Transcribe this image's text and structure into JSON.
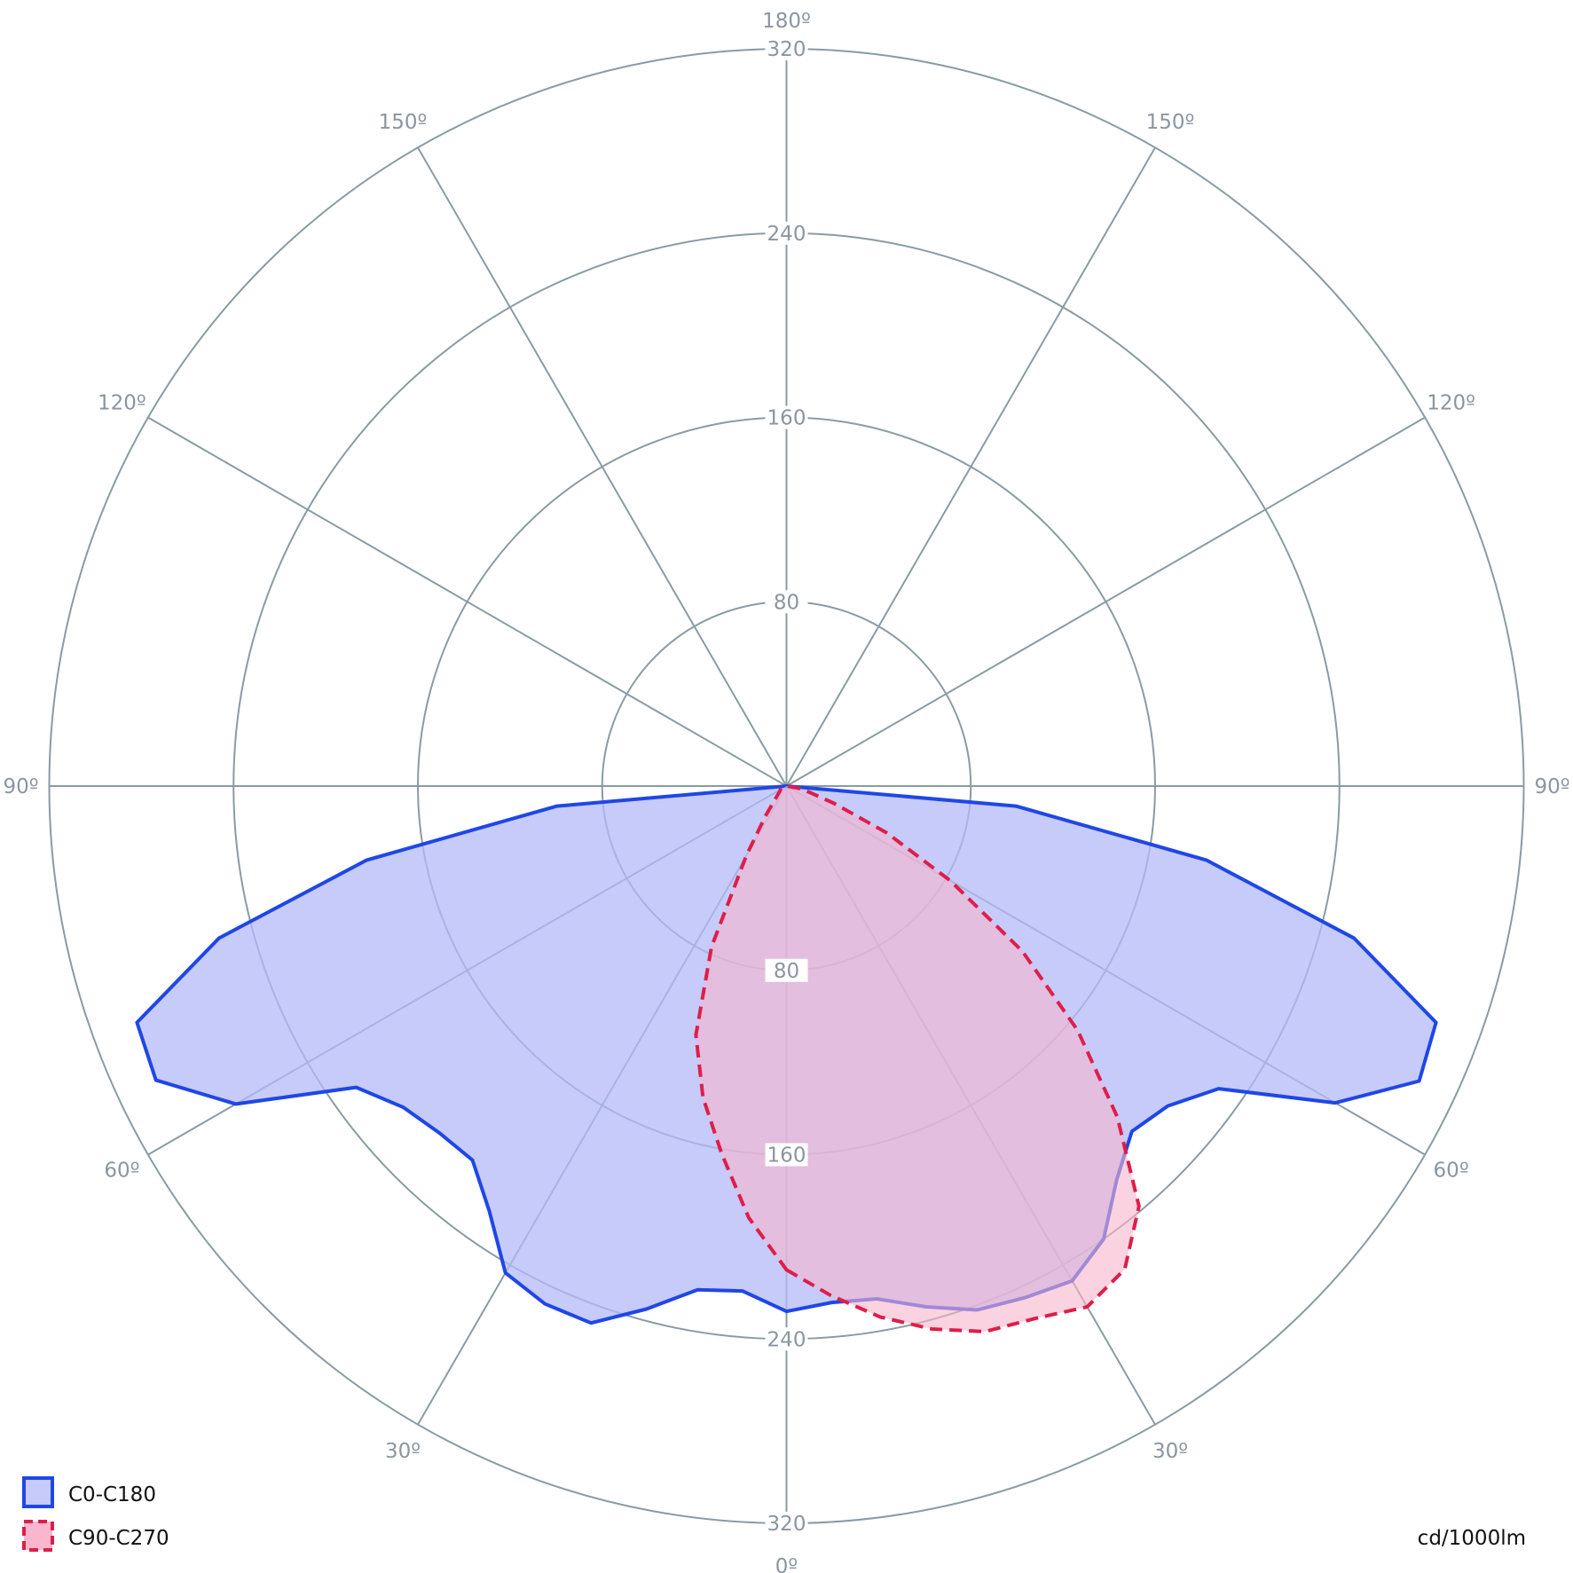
{
  "chart_data": {
    "type": "polar",
    "unit": "cd/1000lm",
    "radial_max": 320,
    "radial_ticks_top": [
      "80",
      "160",
      "240",
      "320"
    ],
    "radial_ticks_bottom": [
      "80",
      "160",
      "240",
      "320"
    ],
    "radial_tick_values": [
      80,
      160,
      240,
      320
    ],
    "angle_labels": [
      "0º",
      "30º",
      "60º",
      "90º",
      "120º",
      "150º",
      "180º"
    ],
    "legend": [
      {
        "name": "C0-C180",
        "stroke": "#1f47e6",
        "fill": "#c6cbfa",
        "dash": false
      },
      {
        "name": "C90-C270",
        "stroke": "#de1e4a",
        "fill": "#f9b6cc",
        "dash": true
      }
    ],
    "series": [
      {
        "name": "C0-C180",
        "color": "#1f47e6",
        "fill": "#b3b9f8",
        "points_right": [
          {
            "angle": 0,
            "value": 228
          },
          {
            "angle": 5,
            "value": 225
          },
          {
            "angle": 10,
            "value": 226
          },
          {
            "angle": 15,
            "value": 234
          },
          {
            "angle": 20,
            "value": 242
          },
          {
            "angle": 25,
            "value": 245
          },
          {
            "angle": 30,
            "value": 248
          },
          {
            "angle": 35,
            "value": 240
          },
          {
            "angle": 40,
            "value": 223
          },
          {
            "angle": 45,
            "value": 212
          },
          {
            "angle": 50,
            "value": 216
          },
          {
            "angle": 55,
            "value": 229
          },
          {
            "angle": 60,
            "value": 275
          },
          {
            "angle": 65,
            "value": 303
          },
          {
            "angle": 70,
            "value": 300
          },
          {
            "angle": 75,
            "value": 255
          },
          {
            "angle": 80,
            "value": 185
          },
          {
            "angle": 85,
            "value": 100
          },
          {
            "angle": 90,
            "value": 0
          }
        ],
        "points_left": [
          {
            "angle": 0,
            "value": 228
          },
          {
            "angle": 5,
            "value": 220
          },
          {
            "angle": 10,
            "value": 222
          },
          {
            "angle": 15,
            "value": 235
          },
          {
            "angle": 20,
            "value": 248
          },
          {
            "angle": 25,
            "value": 248
          },
          {
            "angle": 30,
            "value": 244
          },
          {
            "angle": 35,
            "value": 225
          },
          {
            "angle": 40,
            "value": 212
          },
          {
            "angle": 45,
            "value": 213
          },
          {
            "angle": 50,
            "value": 217
          },
          {
            "angle": 55,
            "value": 228
          },
          {
            "angle": 60,
            "value": 276
          },
          {
            "angle": 65,
            "value": 302
          },
          {
            "angle": 70,
            "value": 300
          },
          {
            "angle": 75,
            "value": 255
          },
          {
            "angle": 80,
            "value": 185
          },
          {
            "angle": 85,
            "value": 100
          },
          {
            "angle": 90,
            "value": 0
          }
        ]
      },
      {
        "name": "C90-C270",
        "color": "#de1e4a",
        "fill": "#f9b6cc",
        "points_right": [
          {
            "angle": 0,
            "value": 210
          },
          {
            "angle": 5,
            "value": 222
          },
          {
            "angle": 10,
            "value": 234
          },
          {
            "angle": 15,
            "value": 244
          },
          {
            "angle": 20,
            "value": 252
          },
          {
            "angle": 25,
            "value": 255
          },
          {
            "angle": 30,
            "value": 261
          },
          {
            "angle": 35,
            "value": 256
          },
          {
            "angle": 40,
            "value": 238
          },
          {
            "angle": 45,
            "value": 203
          },
          {
            "angle": 50,
            "value": 165
          },
          {
            "angle": 55,
            "value": 125
          },
          {
            "angle": 60,
            "value": 82
          },
          {
            "angle": 65,
            "value": 48
          },
          {
            "angle": 70,
            "value": 22
          },
          {
            "angle": 75,
            "value": 10
          },
          {
            "angle": 80,
            "value": 5
          },
          {
            "angle": 90,
            "value": 0
          }
        ],
        "points_left": [
          {
            "angle": 0,
            "value": 210
          },
          {
            "angle": 5,
            "value": 188
          },
          {
            "angle": 10,
            "value": 162
          },
          {
            "angle": 15,
            "value": 140
          },
          {
            "angle": 20,
            "value": 115
          },
          {
            "angle": 25,
            "value": 77
          },
          {
            "angle": 30,
            "value": 35
          },
          {
            "angle": 35,
            "value": 16
          },
          {
            "angle": 40,
            "value": 8
          },
          {
            "angle": 50,
            "value": 4
          },
          {
            "angle": 60,
            "value": 3
          },
          {
            "angle": 90,
            "value": 0
          }
        ]
      }
    ]
  }
}
